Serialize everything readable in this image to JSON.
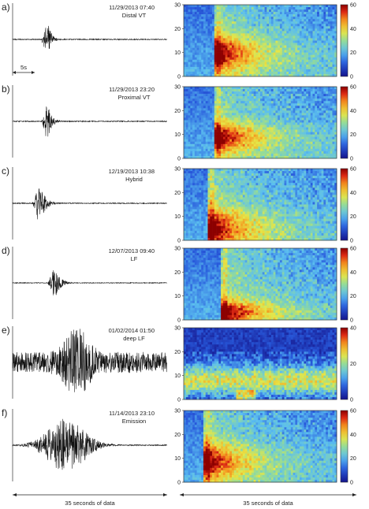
{
  "figure": {
    "bottom_label_left": "35 seconds of data",
    "bottom_label_right": "35 seconds of data",
    "scale_bar_label": "5s"
  },
  "chart_data": [
    {
      "type": "line",
      "panel_letter": "a)",
      "timestamp": "11/29/2013 07:40",
      "event_label": "Distal VT",
      "onset_s": 7.5,
      "amplitude": 1.0,
      "decay": 0.22
    },
    {
      "type": "heatmap",
      "panel_letter": "a)",
      "ylim": [
        0,
        30
      ],
      "yticks": [
        0,
        10,
        20,
        30
      ],
      "colorbar_ticks": [
        0,
        20,
        40,
        60
      ],
      "clim": [
        0,
        60
      ],
      "onset_s": 7.5,
      "peak_hz": 10,
      "spread_hz": 7
    },
    {
      "type": "line",
      "panel_letter": "b)",
      "timestamp": "11/29/2013 23:20",
      "event_label": "Proximal VT",
      "onset_s": 7.5,
      "amplitude": 1.0,
      "decay": 0.2
    },
    {
      "type": "heatmap",
      "panel_letter": "b)",
      "ylim": [
        0,
        30
      ],
      "yticks": [
        0,
        10,
        20,
        30
      ],
      "colorbar_ticks": [
        0,
        20,
        40,
        60
      ],
      "clim": [
        0,
        60
      ],
      "onset_s": 7.5,
      "peak_hz": 9,
      "spread_hz": 6
    },
    {
      "type": "line",
      "panel_letter": "c)",
      "timestamp": "12/19/2013 10:38",
      "event_label": "Hybrid",
      "onset_s": 5.5,
      "amplitude": 1.0,
      "decay": 0.14
    },
    {
      "type": "heatmap",
      "panel_letter": "c)",
      "ylim": [
        0,
        30
      ],
      "yticks": [
        0,
        10,
        20,
        30
      ],
      "colorbar_ticks": [
        0,
        20,
        40,
        60
      ],
      "clim": [
        0,
        60
      ],
      "onset_s": 6,
      "peak_hz": 5,
      "spread_hz": 8
    },
    {
      "type": "line",
      "panel_letter": "d)",
      "timestamp": "12/07/2013 09:40",
      "event_label": "LF",
      "onset_s": 9,
      "amplitude": 0.8,
      "decay": 0.15
    },
    {
      "type": "heatmap",
      "panel_letter": "d)",
      "ylim": [
        0,
        30
      ],
      "yticks": [
        0,
        10,
        20,
        30
      ],
      "colorbar_ticks": [
        0,
        20,
        40,
        60
      ],
      "clim": [
        0,
        60
      ],
      "onset_s": 9,
      "peak_hz": 3,
      "spread_hz": 5
    },
    {
      "type": "line",
      "panel_letter": "e)",
      "timestamp": "01/02/2014 01:50",
      "event_label": "deep LF",
      "onset_s": 12,
      "amplitude": 0.9,
      "decay": 0.12
    },
    {
      "type": "heatmap",
      "panel_letter": "e)",
      "ylim": [
        0,
        30
      ],
      "yticks": [
        0,
        10,
        20,
        30
      ],
      "colorbar_ticks": [
        0,
        20,
        40
      ],
      "clim": [
        0,
        40
      ],
      "onset_s": 12,
      "peak_hz": 3,
      "spread_hz": 3
    },
    {
      "type": "line",
      "panel_letter": "f)",
      "timestamp": "11/14/2013 23:10",
      "event_label": "Emission",
      "onset_s": 5,
      "amplitude": 0.85,
      "decay": 0.06
    },
    {
      "type": "heatmap",
      "panel_letter": "f)",
      "ylim": [
        0,
        30
      ],
      "yticks": [
        0,
        10,
        20,
        30
      ],
      "colorbar_ticks": [
        0,
        20,
        40,
        60
      ],
      "clim": [
        0,
        60
      ],
      "onset_s": 5,
      "peak_hz": 9,
      "spread_hz": 7
    }
  ]
}
